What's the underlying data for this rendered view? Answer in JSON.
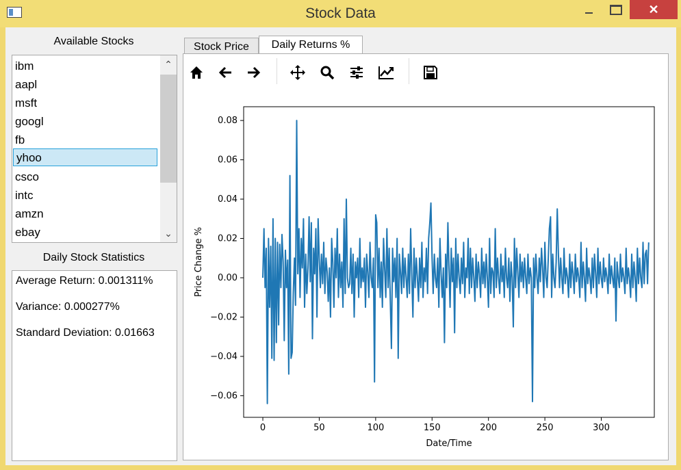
{
  "window": {
    "title": "Stock Data",
    "close_glyph": "✕"
  },
  "stocks_panel": {
    "heading": "Available Stocks",
    "items": [
      "ibm",
      "aapl",
      "msft",
      "googl",
      "fb",
      "yhoo",
      "csco",
      "intc",
      "amzn",
      "ebay"
    ],
    "selected": "yhoo",
    "scroll_up_glyph": "⌃",
    "scroll_down_glyph": "⌄"
  },
  "stats_panel": {
    "heading": "Daily Stock Statistics",
    "average_return": "Average Return: 0.001311%",
    "variance": "Variance: 0.000277%",
    "std_dev": "Standard Deviation: 0.01663"
  },
  "tabs": [
    {
      "label": "Stock Price",
      "active": false
    },
    {
      "label": "Daily Returns %",
      "active": true
    }
  ],
  "toolbar": [
    "home-icon",
    "back-arrow-icon",
    "forward-arrow-icon",
    "pan-icon",
    "zoom-icon",
    "configure-subplots-icon",
    "edit-axes-icon",
    "save-icon"
  ],
  "chart_data": {
    "type": "line",
    "xlabel": "Date/Time",
    "ylabel": "Price Change %",
    "xlim": [
      -17,
      347
    ],
    "ylim": [
      -0.071,
      0.087
    ],
    "xticks": [
      0,
      50,
      100,
      150,
      200,
      250,
      300
    ],
    "xtick_labels": [
      "0",
      "50",
      "100",
      "150",
      "200",
      "250",
      "300"
    ],
    "yticks": [
      0.08,
      0.06,
      0.04,
      0.02,
      0.0,
      -0.02,
      -0.04,
      -0.06
    ],
    "ytick_labels": [
      "0.08",
      "0.06",
      "0.04",
      "0.02",
      "0.00",
      "−0.02",
      "−0.04",
      "−0.06"
    ],
    "series_color": "#1f77b4",
    "series": [
      {
        "values": [
          0.0,
          0.025,
          -0.005,
          0.015,
          -0.064,
          0.02,
          -0.015,
          0.016,
          -0.041,
          0.03,
          -0.042,
          0.02,
          -0.033,
          0.018,
          -0.024,
          0.017,
          -0.005,
          0.022,
          0.008,
          -0.032,
          0.014,
          -0.005,
          0.009,
          -0.049,
          0.052,
          -0.041,
          -0.038,
          -0.008,
          0.01,
          -0.014,
          0.08,
          0.002,
          0.025,
          -0.01,
          0.02,
          0.005,
          0.03,
          -0.015,
          0.012,
          -0.008,
          0.005,
          0.031,
          -0.002,
          0.028,
          -0.031,
          0.015,
          0.002,
          0.025,
          -0.02,
          0.03,
          0.01,
          -0.005,
          0.012,
          -0.003,
          0.018,
          -0.008,
          0.01,
          0.003,
          -0.012,
          0.005,
          -0.02,
          0.02,
          0.008,
          -0.015,
          0.015,
          0.0,
          0.025,
          -0.01,
          0.012,
          -0.005,
          0.008,
          -0.015,
          0.03,
          -0.008,
          0.04,
          0.0,
          -0.005,
          -0.003,
          0.015,
          -0.008,
          0.012,
          -0.02,
          0.008,
          0.0,
          0.01,
          -0.01,
          0.02,
          -0.005,
          0.005,
          -0.002,
          0.01,
          -0.015,
          0.012,
          0.003,
          -0.01,
          0.018,
          0.0,
          -0.005,
          0.01,
          -0.053,
          0.032,
          0.028,
          -0.005,
          0.015,
          -0.01,
          0.008,
          -0.015,
          0.02,
          0.005,
          -0.01,
          0.025,
          -0.005,
          0.015,
          -0.012,
          -0.036,
          0.015,
          -0.002,
          0.01,
          -0.01,
          0.02,
          -0.041,
          0.012,
          0.003,
          -0.008,
          0.015,
          -0.005,
          0.01,
          0.0,
          -0.01,
          0.012,
          -0.008,
          0.025,
          0.002,
          -0.02,
          0.015,
          -0.005,
          0.01,
          0.0,
          -0.012,
          0.01,
          -0.005,
          0.018,
          -0.01,
          0.005,
          -0.002,
          0.015,
          -0.008,
          0.02,
          0.028,
          0.038,
          0.01,
          -0.008,
          0.012,
          0.0,
          -0.005,
          0.01,
          -0.015,
          0.02,
          0.002,
          -0.01,
          0.005,
          -0.033,
          0.012,
          -0.005,
          0.028,
          0.005,
          -0.015,
          0.015,
          -0.002,
          0.01,
          -0.028,
          0.02,
          -0.005,
          0.012,
          0.0,
          -0.008,
          0.01,
          -0.003,
          0.018,
          -0.01,
          0.005,
          0.0,
          0.02,
          -0.008,
          0.015,
          -0.005,
          0.01,
          0.0,
          -0.012,
          0.012,
          -0.005,
          0.008,
          0.002,
          -0.01,
          0.015,
          -0.003,
          0.008,
          -0.005,
          0.012,
          0.0,
          -0.015,
          0.02,
          -0.008,
          0.005,
          0.003,
          -0.01,
          0.025,
          -0.005,
          0.01,
          0.0,
          -0.008,
          0.012,
          -0.002,
          0.006,
          -0.01,
          0.015,
          0.0,
          -0.005,
          0.01,
          -0.012,
          0.008,
          0.0,
          -0.025,
          0.02,
          -0.005,
          0.015,
          0.003,
          -0.01,
          0.012,
          -0.002,
          0.008,
          -0.005,
          0.01,
          0.0,
          -0.008,
          0.012,
          -0.003,
          0.005,
          0.0,
          -0.063,
          0.01,
          -0.005,
          0.012,
          0.0,
          -0.008,
          0.01,
          -0.002,
          0.015,
          0.005,
          -0.01,
          0.018,
          0.0,
          -0.005,
          0.01,
          0.025,
          0.031,
          -0.01,
          0.012,
          0.0,
          -0.005,
          0.008,
          0.035,
          0.012,
          -0.005,
          0.01,
          0.0,
          -0.008,
          0.015,
          -0.003,
          0.005,
          0.0,
          -0.01,
          0.012,
          -0.005,
          0.008,
          0.002,
          -0.008,
          0.012,
          -0.002,
          0.005,
          0.0,
          -0.01,
          0.018,
          -0.005,
          0.008,
          0.0,
          -0.012,
          0.015,
          -0.003,
          0.005,
          0.0,
          -0.008,
          0.01,
          -0.005,
          0.012,
          0.002,
          -0.01,
          0.015,
          -0.003,
          0.008,
          0.0,
          -0.005,
          0.01,
          -0.002,
          0.005,
          0.0,
          -0.008,
          0.012,
          -0.003,
          0.006,
          0.0,
          -0.005,
          0.01,
          -0.022,
          0.008,
          0.0,
          -0.005,
          0.012,
          -0.002,
          0.005,
          0.0,
          -0.008,
          0.015,
          -0.003,
          0.005,
          0.0,
          -0.01,
          0.012,
          -0.005,
          0.008,
          0.0,
          -0.012,
          0.015,
          -0.003,
          0.01,
          0.0,
          -0.005,
          0.018,
          -0.003,
          0.012,
          0.014,
          -0.003,
          0.018
        ]
      }
    ]
  }
}
